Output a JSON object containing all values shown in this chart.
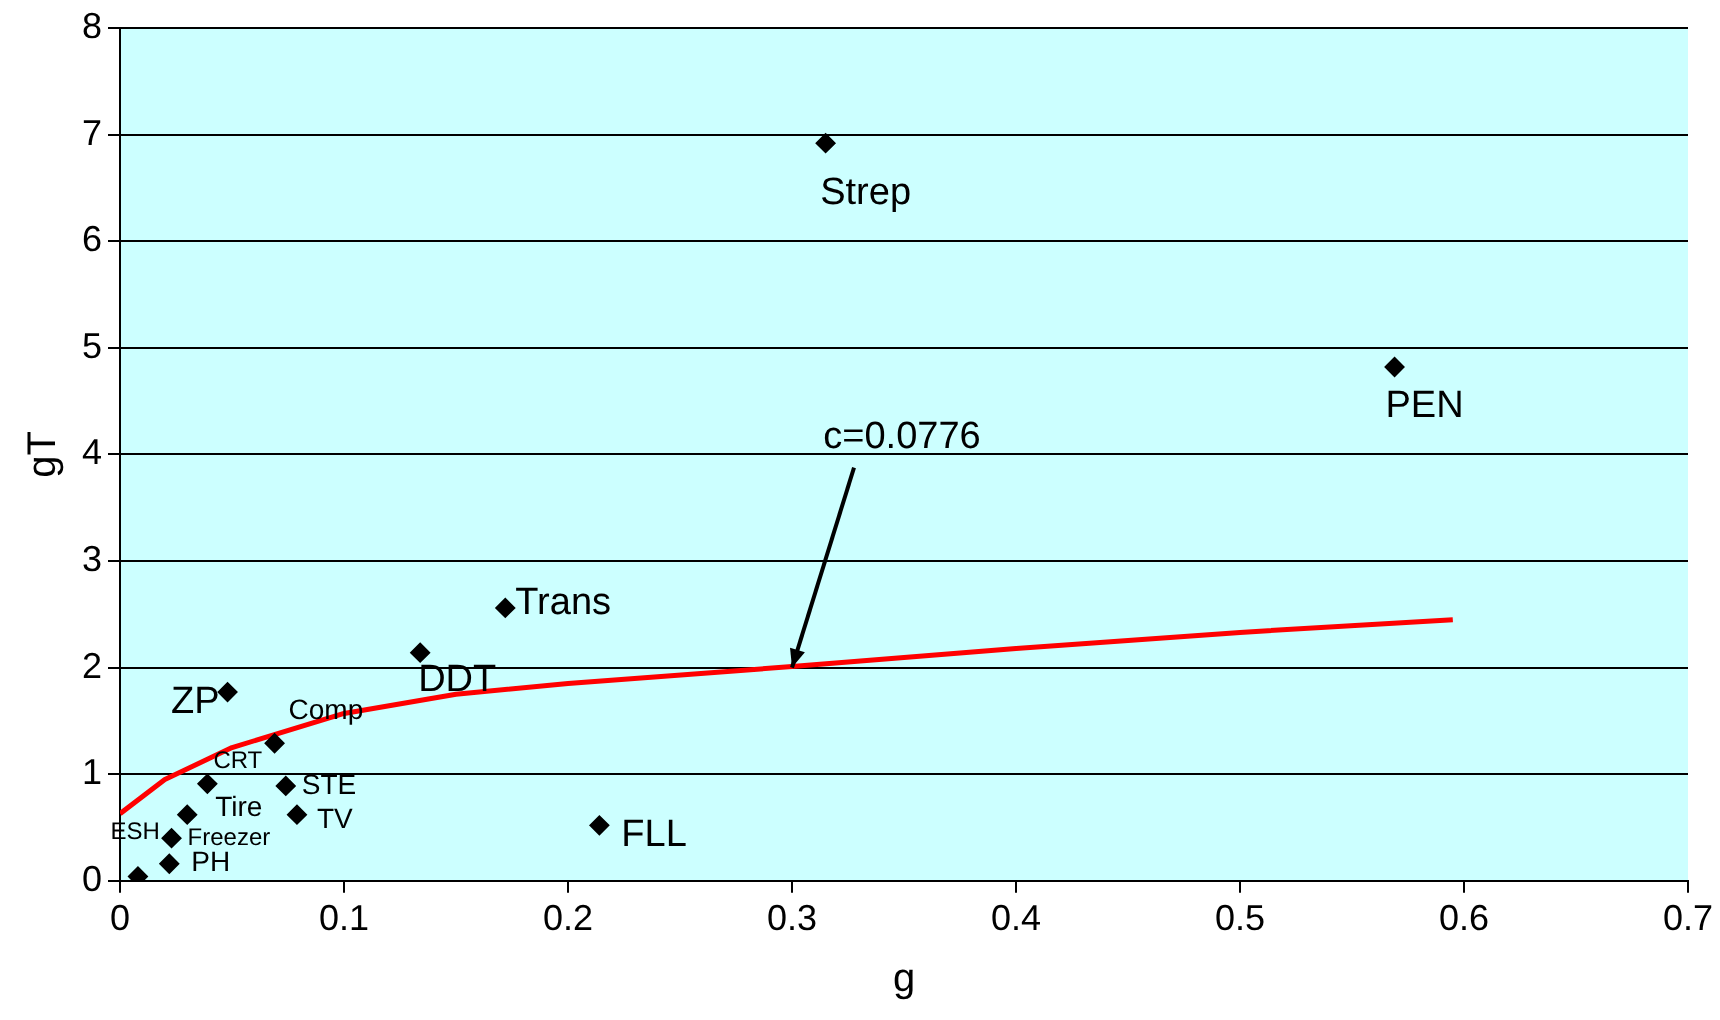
{
  "chart_data": {
    "type": "scatter",
    "xlabel": "g",
    "ylabel": "gT",
    "xlim": [
      0,
      0.7
    ],
    "xticks": [
      0,
      0.1,
      0.2,
      0.3,
      0.4,
      0.5,
      0.6,
      0.7
    ],
    "ylim": [
      0,
      8
    ],
    "yticks": [
      0,
      1,
      2,
      3,
      4,
      5,
      6,
      7,
      8
    ],
    "grid": "y",
    "legend": false,
    "series": [
      {
        "marker": "diamond",
        "color": "#000000",
        "x": [
          0.008,
          0.022,
          0.023,
          0.03,
          0.039,
          0.069,
          0.074,
          0.079,
          0.048,
          0.134,
          0.172,
          0.214,
          0.315,
          0.569
        ],
        "values": [
          0.04,
          0.16,
          0.4,
          0.62,
          0.91,
          1.29,
          0.89,
          0.62,
          1.77,
          2.14,
          2.56,
          0.52,
          6.92,
          4.82
        ]
      },
      {
        "type": "line",
        "color": "#ff0000",
        "x": [
          0,
          0.02,
          0.05,
          0.1,
          0.15,
          0.2,
          0.3,
          0.4,
          0.5,
          0.595
        ],
        "values": [
          0.63,
          0.95,
          1.25,
          1.57,
          1.75,
          1.85,
          2.01,
          2.18,
          2.33,
          2.45
        ]
      }
    ],
    "annotations": [
      {
        "text": "ESH",
        "x": 0.008,
        "y": 0.04
      },
      {
        "text": "PH",
        "x": 0.022,
        "y": 0.16
      },
      {
        "text": "Freezer",
        "x": 0.023,
        "y": 0.4
      },
      {
        "text": "Tire",
        "x": 0.03,
        "y": 0.62
      },
      {
        "text": "CRT",
        "x": 0.039,
        "y": 0.91
      },
      {
        "text": "Comp",
        "x": 0.069,
        "y": 1.29
      },
      {
        "text": "STE",
        "x": 0.074,
        "y": 0.89
      },
      {
        "text": "TV",
        "x": 0.079,
        "y": 0.62
      },
      {
        "text": "ZP",
        "x": 0.048,
        "y": 1.77
      },
      {
        "text": "DDT",
        "x": 0.134,
        "y": 2.14
      },
      {
        "text": "Trans",
        "x": 0.172,
        "y": 2.56
      },
      {
        "text": "FLL",
        "x": 0.214,
        "y": 0.52
      },
      {
        "text": "Strep",
        "x": 0.315,
        "y": 6.92
      },
      {
        "text": "PEN",
        "x": 0.569,
        "y": 4.82
      },
      {
        "text": "c=0.0776",
        "x": 0.3,
        "y": 2.0
      }
    ]
  }
}
